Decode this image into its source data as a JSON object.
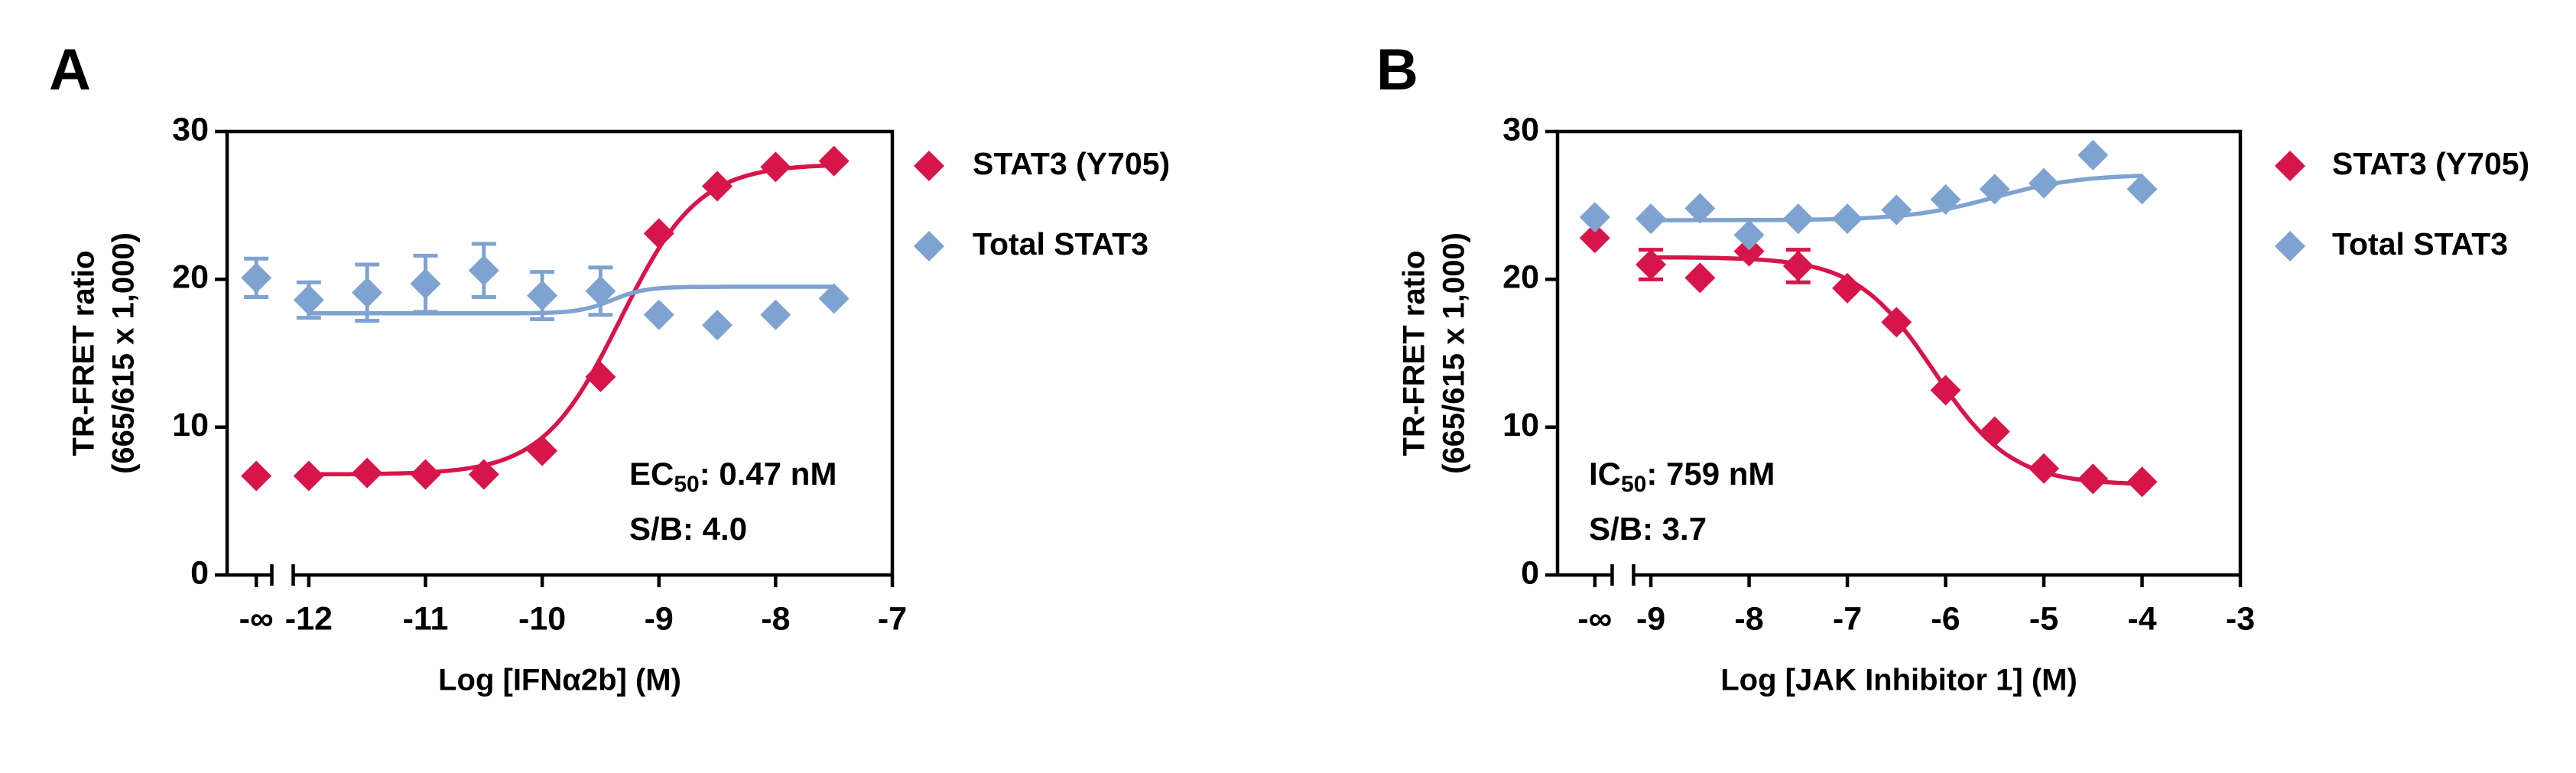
{
  "chart_data": [
    {
      "type": "scatter",
      "panel": "A",
      "x_label": "Log [IFNα2b] (M)",
      "y_label": [
        "TR-FRET ratio",
        "(665/615 x 1,000)"
      ],
      "xlim": [
        -12.7,
        -7
      ],
      "xticks": [
        {
          "value": -12.45,
          "label": "-∞"
        },
        -12,
        -11,
        -10,
        -9,
        -8,
        -7
      ],
      "ylim": [
        0,
        30
      ],
      "yticks": [
        0,
        10,
        20,
        30
      ],
      "x": [
        -12.45,
        -12,
        -11.5,
        -11,
        -10.5,
        -10,
        -9.5,
        -9,
        -8.5,
        -8,
        -7.5
      ],
      "series": [
        {
          "name": "STAT3 (Y705)",
          "color": "#d6154a",
          "values": [
            6.7,
            6.7,
            6.9,
            6.8,
            6.8,
            8.4,
            13.4,
            23.1,
            26.3,
            27.6,
            28.0
          ],
          "errors": [
            null,
            null,
            null,
            null,
            null,
            null,
            null,
            null,
            null,
            null,
            null
          ],
          "fit": {
            "bottom": 6.8,
            "top": 27.8,
            "log_ec50": -9.33,
            "hill": 1.3
          }
        },
        {
          "name": "Total STAT3",
          "color": "#7fa3d0",
          "values": [
            20.1,
            18.6,
            19.1,
            19.7,
            20.6,
            18.9,
            19.2,
            17.6,
            16.9,
            17.6,
            18.7
          ],
          "errors": [
            1.3,
            1.2,
            1.9,
            1.9,
            1.8,
            1.6,
            1.6,
            null,
            null,
            null,
            null
          ],
          "fit": {
            "bottom": 17.7,
            "top": 19.5,
            "log_ec50": -9.4,
            "hill": 3
          }
        }
      ],
      "annotations": [
        {
          "main": "EC",
          "sub": "50",
          "rest": ": 0.47 nM"
        },
        {
          "main": "S/B: 4.0"
        }
      ]
    },
    {
      "type": "scatter",
      "panel": "B",
      "x_label": "Log [JAK Inhibitor 1] (M)",
      "y_label": [
        "TR-FRET ratio",
        "(665/615 x 1,000)"
      ],
      "xlim": [
        -9.95,
        -3
      ],
      "xticks": [
        {
          "value": -9.57,
          "label": "-∞"
        },
        -9,
        -8,
        -7,
        -6,
        -5,
        -4,
        -3
      ],
      "ylim": [
        0,
        30
      ],
      "yticks": [
        0,
        10,
        20,
        30
      ],
      "x": [
        -9.57,
        -9,
        -8.5,
        -8,
        -7.5,
        -7,
        -6.5,
        -6,
        -5.5,
        -5,
        -4.5,
        -4
      ],
      "series": [
        {
          "name": "STAT3 (Y705)",
          "color": "#d6154a",
          "values": [
            22.8,
            21.0,
            20.1,
            21.9,
            20.9,
            19.4,
            17.1,
            12.5,
            9.7,
            7.2,
            6.5,
            6.3
          ],
          "errors": [
            null,
            1.0,
            null,
            null,
            1.1,
            null,
            null,
            null,
            null,
            null,
            null,
            null
          ],
          "fit": {
            "bottom": 6.1,
            "top": 21.5,
            "log_ec50": -6.12,
            "hill": -1.1
          }
        },
        {
          "name": "Total STAT3",
          "color": "#7fa3d0",
          "values": [
            24.2,
            24.1,
            24.8,
            23.0,
            24.1,
            24.1,
            24.7,
            25.4,
            26.1,
            26.5,
            28.4,
            26.1
          ],
          "errors": [
            null,
            null,
            null,
            null,
            null,
            null,
            null,
            null,
            null,
            null,
            null,
            null
          ],
          "fit": {
            "bottom": 24.0,
            "top": 27.1,
            "log_ec50": -5.5,
            "hill": 1
          }
        }
      ],
      "annotations": [
        {
          "main": "IC",
          "sub": "50",
          "rest": ": 759 nM"
        },
        {
          "main": "S/B: 3.7"
        }
      ]
    }
  ]
}
